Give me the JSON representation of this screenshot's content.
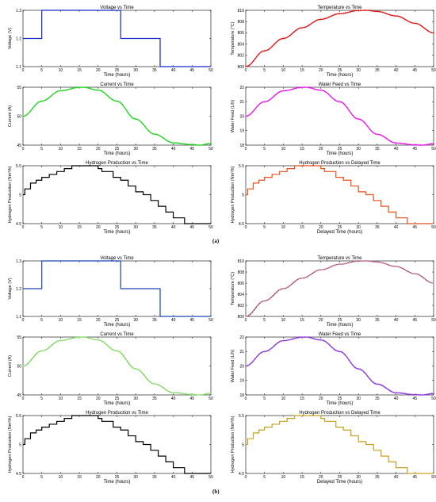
{
  "figure": {
    "panels": [
      {
        "label": "(a)"
      },
      {
        "label": "(b)"
      }
    ]
  },
  "chart_data": [
    {
      "panel": "(a)",
      "type": "line",
      "title": "Voltage vs Time",
      "xlabel": "Time (hours)",
      "ylabel": "Voltage (V)",
      "xlim": [
        0,
        50
      ],
      "ylim": [
        1.1,
        1.3
      ],
      "xticks": [
        "0",
        "5",
        "10",
        "15",
        "20",
        "25",
        "30",
        "35",
        "40",
        "45",
        "50"
      ],
      "yticks": [
        "1.1",
        "1.2",
        "1.3"
      ],
      "color": "#1428c8",
      "step": true,
      "x": [
        0,
        5,
        5,
        26,
        26,
        36.5,
        36.5,
        50
      ],
      "y": [
        1.2,
        1.2,
        1.3,
        1.3,
        1.2,
        1.2,
        1.1,
        1.1
      ]
    },
    {
      "panel": "(a)",
      "type": "line",
      "title": "Temperature vs Time",
      "xlabel": "Time (hours)",
      "ylabel": "Temperature (°C)",
      "xlim": [
        0,
        50
      ],
      "ylim": [
        800,
        810
      ],
      "xticks": [
        "0",
        "5",
        "10",
        "15",
        "20",
        "25",
        "30",
        "35",
        "40",
        "45",
        "50"
      ],
      "yticks": [
        "800",
        "802",
        "804",
        "806",
        "808",
        "810"
      ],
      "color": "#dc1414",
      "marker": "+",
      "x": [
        0,
        5,
        10,
        15,
        20,
        25,
        30,
        32,
        35,
        40,
        45,
        50
      ],
      "y": [
        800.0,
        802.8,
        805.0,
        806.9,
        808.4,
        809.4,
        809.96,
        810.0,
        809.8,
        809.0,
        807.7,
        806.0
      ]
    },
    {
      "panel": "(a)",
      "type": "line",
      "title": "Current vs Time",
      "xlabel": "Time (hours)",
      "ylabel": "Current (A)",
      "xlim": [
        0,
        50
      ],
      "ylim": [
        45,
        55
      ],
      "xticks": [
        "0",
        "5",
        "10",
        "15",
        "20",
        "25",
        "30",
        "35",
        "40",
        "45",
        "50"
      ],
      "yticks": [
        "45",
        "50",
        "55"
      ],
      "color": "#1ed21e",
      "marker": "+",
      "x": [
        0,
        5,
        10,
        15,
        16,
        20,
        25,
        30,
        35,
        40,
        45,
        47,
        50
      ],
      "y": [
        50.0,
        52.6,
        54.4,
        54.97,
        55.0,
        54.5,
        52.6,
        49.5,
        46.9,
        45.4,
        45.1,
        45.0,
        45.3
      ]
    },
    {
      "panel": "(a)",
      "type": "line",
      "title": "Water Feed vs Time",
      "xlabel": "Time (hours)",
      "ylabel": "Water Feed (L/h)",
      "xlim": [
        0,
        50
      ],
      "ylim": [
        18,
        22
      ],
      "xticks": [
        "0",
        "5",
        "10",
        "15",
        "20",
        "25",
        "30",
        "35",
        "40",
        "45",
        "50"
      ],
      "yticks": [
        "18",
        "19",
        "20",
        "21",
        "22"
      ],
      "color": "#e614e6",
      "marker": "+",
      "x": [
        0,
        5,
        10,
        15,
        16,
        20,
        25,
        30,
        35,
        40,
        45,
        47,
        50
      ],
      "y": [
        20.0,
        21.0,
        21.75,
        21.99,
        22.0,
        21.8,
        21.0,
        19.8,
        18.75,
        18.15,
        18.02,
        18.0,
        18.1
      ]
    },
    {
      "panel": "(a)",
      "type": "line",
      "title": "Hydrogen Production vs Time",
      "xlabel": "Time (hours)",
      "ylabel": "Hydrogen Production (Nm³/h)",
      "xlim": [
        0,
        50
      ],
      "ylim": [
        4.5,
        5.5
      ],
      "xticks": [
        "0",
        "5",
        "10",
        "15",
        "20",
        "25",
        "30",
        "35",
        "40",
        "45",
        "50"
      ],
      "yticks": [
        "4.5",
        "5",
        "5.5"
      ],
      "color": "#000000",
      "step": true,
      "x": [
        0,
        0.5,
        2,
        3.5,
        5,
        7,
        9,
        11,
        13,
        14,
        20,
        21,
        24,
        26,
        28,
        30,
        32,
        34,
        36,
        38,
        40,
        43,
        50
      ],
      "y": [
        5.0,
        5.1,
        5.2,
        5.25,
        5.3,
        5.35,
        5.4,
        5.45,
        5.5,
        5.5,
        5.45,
        5.4,
        5.3,
        5.25,
        5.15,
        5.05,
        5.0,
        4.9,
        4.8,
        4.7,
        4.6,
        4.5,
        4.5
      ]
    },
    {
      "panel": "(a)",
      "type": "line",
      "title": "Hydrogen Production vs Delayed Time",
      "xlabel": "Delayed Time (hours)",
      "ylabel": "Hydrogen Production (Nm³/h)",
      "xlim": [
        0,
        50
      ],
      "ylim": [
        4.5,
        5.5
      ],
      "xticks": [
        "0",
        "5",
        "10",
        "15",
        "20",
        "25",
        "30",
        "35",
        "40",
        "45",
        "50"
      ],
      "yticks": [
        "4.5",
        "5",
        "5.5"
      ],
      "color": "#e6501e",
      "step": true,
      "x": [
        0,
        0.5,
        2,
        3.5,
        5,
        7,
        9,
        11,
        13,
        14,
        20,
        21,
        24,
        26,
        28,
        30,
        32,
        34,
        36,
        38,
        40,
        43,
        50
      ],
      "y": [
        5.0,
        5.1,
        5.2,
        5.25,
        5.3,
        5.35,
        5.4,
        5.45,
        5.5,
        5.5,
        5.45,
        5.4,
        5.3,
        5.25,
        5.15,
        5.05,
        5.0,
        4.9,
        4.8,
        4.7,
        4.6,
        4.5,
        4.5
      ]
    },
    {
      "panel": "(b)",
      "type": "line",
      "title": "Voltage vs Time",
      "xlabel": "Time (hours)",
      "ylabel": "Voltage (V)",
      "xlim": [
        0,
        50
      ],
      "ylim": [
        1.1,
        1.3
      ],
      "xticks": [
        "0",
        "5",
        "10",
        "15",
        "20",
        "25",
        "30",
        "35",
        "40",
        "45",
        "50"
      ],
      "yticks": [
        "1.1",
        "1.2",
        "1.3"
      ],
      "color": "#1e46b4",
      "step": true,
      "x": [
        0,
        5,
        5,
        26,
        26,
        36.5,
        36.5,
        50
      ],
      "y": [
        1.2,
        1.2,
        1.3,
        1.3,
        1.2,
        1.2,
        1.1,
        1.1
      ]
    },
    {
      "panel": "(b)",
      "type": "line",
      "title": "Temperature vs Time",
      "xlabel": "Time (hours)",
      "ylabel": "Temperature (°C)",
      "xlim": [
        0,
        50
      ],
      "ylim": [
        800,
        810
      ],
      "xticks": [
        "0",
        "5",
        "10",
        "15",
        "20",
        "25",
        "30",
        "35",
        "40",
        "45",
        "50"
      ],
      "yticks": [
        "800",
        "802",
        "804",
        "806",
        "808",
        "810"
      ],
      "color": "#7a2a14",
      "marker": "+",
      "marker_color": "#f0a0f0",
      "x": [
        0,
        5,
        10,
        15,
        20,
        25,
        30,
        32,
        35,
        40,
        45,
        50
      ],
      "y": [
        800.0,
        802.8,
        805.0,
        806.9,
        808.4,
        809.4,
        809.96,
        810.0,
        809.8,
        809.0,
        807.7,
        806.0
      ]
    },
    {
      "panel": "(b)",
      "type": "line",
      "title": "Current vs Time",
      "xlabel": "Time (hours)",
      "ylabel": "Current (A)",
      "xlim": [
        0,
        50
      ],
      "ylim": [
        45,
        55
      ],
      "xticks": [
        "0",
        "5",
        "10",
        "15",
        "20",
        "25",
        "30",
        "35",
        "40",
        "45",
        "50"
      ],
      "yticks": [
        "45",
        "50",
        "55"
      ],
      "color": "#5ac81e",
      "marker": "+",
      "marker_color": "#b4f0b4",
      "x": [
        0,
        5,
        10,
        15,
        16,
        20,
        25,
        30,
        35,
        40,
        45,
        47,
        50
      ],
      "y": [
        50.0,
        52.6,
        54.4,
        54.97,
        55.0,
        54.5,
        52.6,
        49.5,
        46.9,
        45.4,
        45.1,
        45.0,
        45.3
      ]
    },
    {
      "panel": "(b)",
      "type": "line",
      "title": "Water Feed vs Time",
      "xlabel": "Time (hours)",
      "ylabel": "Water Feed (L/h)",
      "xlim": [
        0,
        50
      ],
      "ylim": [
        18,
        22
      ],
      "xticks": [
        "0",
        "5",
        "10",
        "15",
        "20",
        "25",
        "30",
        "35",
        "40",
        "45",
        "50"
      ],
      "yticks": [
        "18",
        "19",
        "20",
        "21",
        "22"
      ],
      "color": "#8c32dc",
      "marker": "+",
      "x": [
        0,
        5,
        10,
        15,
        16,
        20,
        25,
        30,
        35,
        40,
        45,
        47,
        50
      ],
      "y": [
        20.0,
        21.0,
        21.75,
        21.99,
        22.0,
        21.8,
        21.0,
        19.8,
        18.75,
        18.15,
        18.02,
        18.0,
        18.1
      ]
    },
    {
      "panel": "(b)",
      "type": "line",
      "title": "Hydrogen Production vs Time",
      "xlabel": "Time (hours)",
      "ylabel": "Hydrogen Production (Nm³/h)",
      "xlim": [
        0,
        50
      ],
      "ylim": [
        4.5,
        5.5
      ],
      "xticks": [
        "0",
        "5",
        "10",
        "15",
        "20",
        "25",
        "30",
        "35",
        "40",
        "45",
        "50"
      ],
      "yticks": [
        "4.5",
        "5",
        "5.5"
      ],
      "color": "#000000",
      "step": true,
      "x": [
        0,
        0.5,
        2,
        3.5,
        5,
        7,
        9,
        11,
        13,
        14,
        20,
        21,
        24,
        26,
        28,
        30,
        32,
        34,
        36,
        38,
        40,
        43,
        50
      ],
      "y": [
        5.0,
        5.1,
        5.2,
        5.25,
        5.3,
        5.35,
        5.4,
        5.45,
        5.5,
        5.5,
        5.45,
        5.4,
        5.3,
        5.25,
        5.15,
        5.05,
        5.0,
        4.9,
        4.8,
        4.7,
        4.6,
        4.5,
        4.5
      ]
    },
    {
      "panel": "(b)",
      "type": "line",
      "title": "Hydrogen Production vs Delayed Time",
      "xlabel": "Delayed Time (hours)",
      "ylabel": "Hydrogen Production (Nm³/h)",
      "xlim": [
        0,
        50
      ],
      "ylim": [
        4.5,
        5.5
      ],
      "xticks": [
        "0",
        "5",
        "10",
        "15",
        "20",
        "25",
        "30",
        "35",
        "40",
        "45",
        "50"
      ],
      "yticks": [
        "4.5",
        "5",
        "5.5"
      ],
      "color": "#c8a01e",
      "step": true,
      "x": [
        0,
        0.5,
        2,
        3.5,
        5,
        7,
        9,
        11,
        13,
        14,
        20,
        21,
        24,
        26,
        28,
        30,
        32,
        34,
        36,
        38,
        40,
        43,
        50
      ],
      "y": [
        5.0,
        5.1,
        5.2,
        5.25,
        5.3,
        5.35,
        5.4,
        5.45,
        5.5,
        5.5,
        5.45,
        5.4,
        5.3,
        5.25,
        5.15,
        5.05,
        5.0,
        4.9,
        4.8,
        4.7,
        4.6,
        4.5,
        4.5
      ]
    }
  ]
}
